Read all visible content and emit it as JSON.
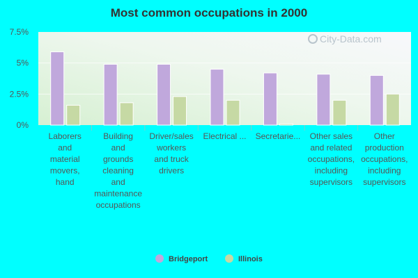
{
  "chart_data": {
    "type": "bar",
    "title": "Most common occupations in 2000",
    "categories": [
      [
        "Laborers",
        "and",
        "material",
        "movers,",
        "hand"
      ],
      [
        "Building",
        "and",
        "grounds",
        "cleaning",
        "and",
        "maintenance",
        "occupations"
      ],
      [
        "Driver/sales",
        "workers",
        "and truck",
        "drivers"
      ],
      [
        "Electrical ..."
      ],
      [
        "Secretarie..."
      ],
      [
        "Other sales",
        "and related",
        "occupations,",
        "including",
        "supervisors"
      ],
      [
        "Other",
        "production",
        "occupations,",
        "including",
        "supervisors"
      ]
    ],
    "series": [
      {
        "name": "Bridgeport",
        "color": "#c0a8dc",
        "values": [
          5.9,
          4.9,
          4.9,
          4.5,
          4.2,
          4.1,
          4.0
        ]
      },
      {
        "name": "Illinois",
        "color": "#c6d9a4",
        "values": [
          1.6,
          1.8,
          2.3,
          2.0,
          0.1,
          2.0,
          2.5
        ]
      }
    ],
    "yticks": [
      "0%",
      "2.5%",
      "5%",
      "7.5%"
    ],
    "ytick_values": [
      0,
      2.5,
      5,
      7.5
    ],
    "ylim": [
      0,
      7.5
    ],
    "legend_position": "bottom-center",
    "grid": true,
    "watermark": "City-Data.com"
  }
}
